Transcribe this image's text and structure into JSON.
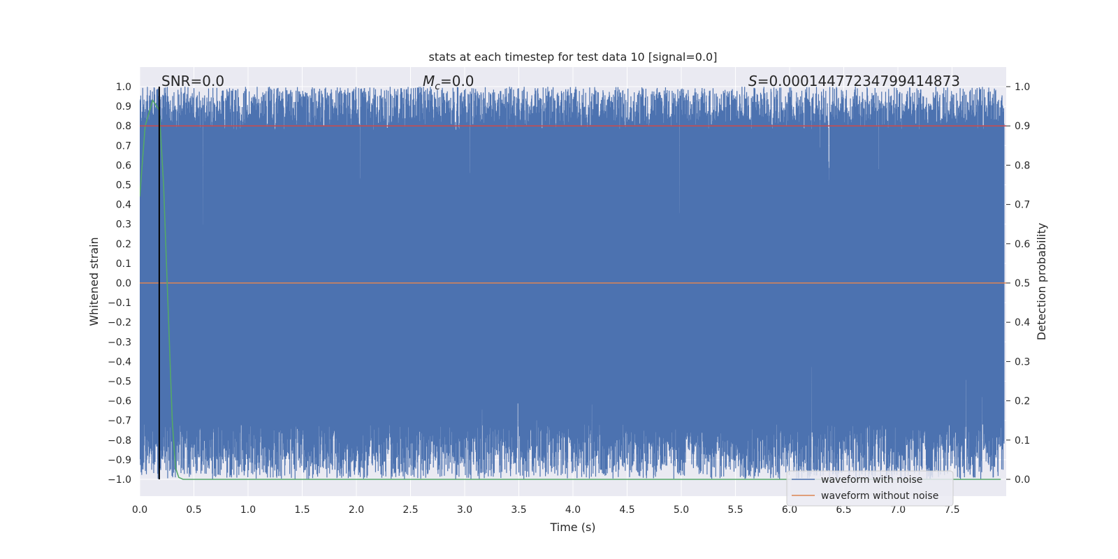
{
  "chart_data": {
    "type": "line",
    "title": "stats at each timestep for test data 10 [signal=0.0]",
    "xlabel": "Time (s)",
    "ylabel_left": "Whitened strain",
    "ylabel_right": "Detection probability",
    "xlim": [
      0.0,
      8.0
    ],
    "ylim_left": [
      -1.0,
      1.0
    ],
    "ylim_right": [
      0.0,
      1.0
    ],
    "x_ticks": [
      "0.0",
      "0.5",
      "1.0",
      "1.5",
      "2.0",
      "2.5",
      "3.0",
      "3.5",
      "4.0",
      "4.5",
      "5.0",
      "5.5",
      "6.0",
      "6.5",
      "7.0",
      "7.5"
    ],
    "y_left_ticks": [
      "1.0",
      "0.9",
      "0.8",
      "0.7",
      "0.6",
      "0.5",
      "0.4",
      "0.3",
      "0.2",
      "0.1",
      "0.0",
      "−0.1",
      "−0.2",
      "−0.3",
      "−0.4",
      "−0.5",
      "−0.6",
      "−0.7",
      "−0.8",
      "−0.9",
      "−1.0"
    ],
    "y_right_ticks": [
      "1.0",
      "0.9",
      "0.8",
      "0.7",
      "0.6",
      "0.5",
      "0.4",
      "0.3",
      "0.2",
      "0.1",
      "0.0"
    ],
    "annotations": {
      "snr": "SNR=0.0",
      "mc_symbol": "M",
      "mc_sub": "c",
      "mc_value": "=0.0",
      "s_symbol": "S",
      "s_value": "=0.00014477234799414873"
    },
    "legend": {
      "position": "lower-right",
      "entries": [
        {
          "label": "waveform with noise",
          "color": "#4c72b0"
        },
        {
          "label": "waveform without noise",
          "color": "#dd8452"
        }
      ]
    },
    "series": [
      {
        "name": "waveform with noise",
        "axis": "left",
        "color": "#4c72b0",
        "description": "dense noise filling approximately -1.0 to 1.0",
        "range": [
          -1.0,
          1.0
        ]
      },
      {
        "name": "waveform without noise",
        "axis": "left",
        "color": "#dd8452",
        "x": [
          0.0,
          8.0
        ],
        "y": [
          0.0,
          0.0
        ]
      },
      {
        "name": "detection probability",
        "axis": "right",
        "color": "#55a868",
        "x": [
          0.0,
          0.05,
          0.12,
          0.18,
          0.22,
          0.26,
          0.3,
          0.33,
          0.36,
          0.4,
          7.95
        ],
        "y": [
          0.72,
          0.9,
          0.965,
          0.94,
          0.75,
          0.45,
          0.15,
          0.03,
          0.005,
          0.0,
          0.0
        ]
      },
      {
        "name": "threshold",
        "axis": "right",
        "color": "#c44e52",
        "x": [
          0.0,
          8.0
        ],
        "y": [
          0.9,
          0.9
        ]
      },
      {
        "name": "marker",
        "axis": "left",
        "color": "#000000",
        "x": [
          0.18,
          0.18
        ],
        "y": [
          -1.0,
          1.0
        ]
      }
    ]
  }
}
